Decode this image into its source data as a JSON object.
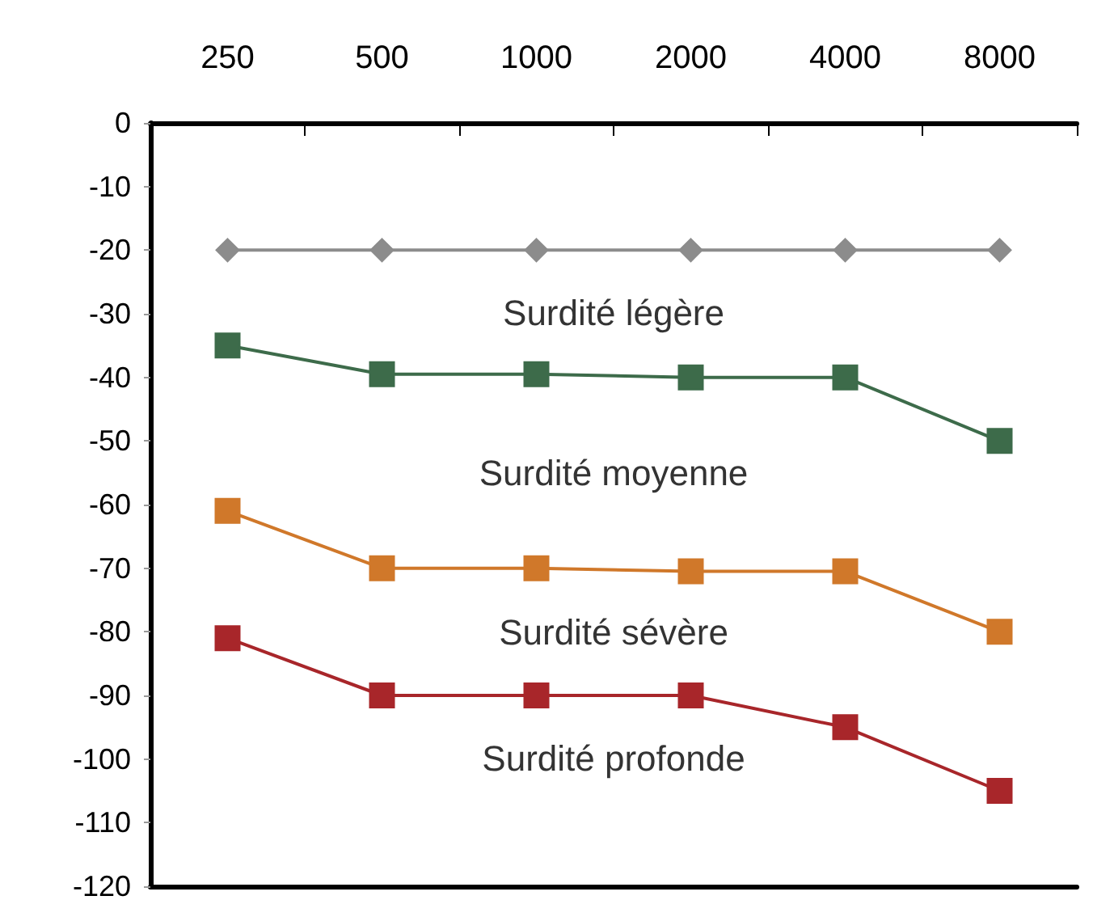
{
  "chart_data": {
    "type": "line",
    "categories": [
      "250",
      "500",
      "1000",
      "2000",
      "4000",
      "8000"
    ],
    "series": [
      {
        "color": "#8c8c8c",
        "marker": "diamond",
        "values": [
          -20,
          -20,
          -20,
          -20,
          -20,
          -20
        ]
      },
      {
        "color": "#3d6b4a",
        "marker": "square",
        "values": [
          -35,
          -39.5,
          -39.5,
          -40,
          -40,
          -50
        ]
      },
      {
        "color": "#d0782a",
        "marker": "square",
        "values": [
          -61,
          -70,
          -70,
          -70.5,
          -70.5,
          -80
        ]
      },
      {
        "color": "#a8262a",
        "marker": "square",
        "values": [
          -81,
          -90,
          -90,
          -90,
          -95,
          -105
        ]
      }
    ],
    "ylim": [
      -120,
      0
    ],
    "yticks": [
      0,
      -10,
      -20,
      -30,
      -40,
      -50,
      -60,
      -70,
      -80,
      -90,
      -100,
      -110,
      -120
    ],
    "annotations": [
      "Surdité légère",
      "Surdité moyenne",
      "Surdité sévère",
      "Surdité profonde"
    ],
    "grid": false
  }
}
